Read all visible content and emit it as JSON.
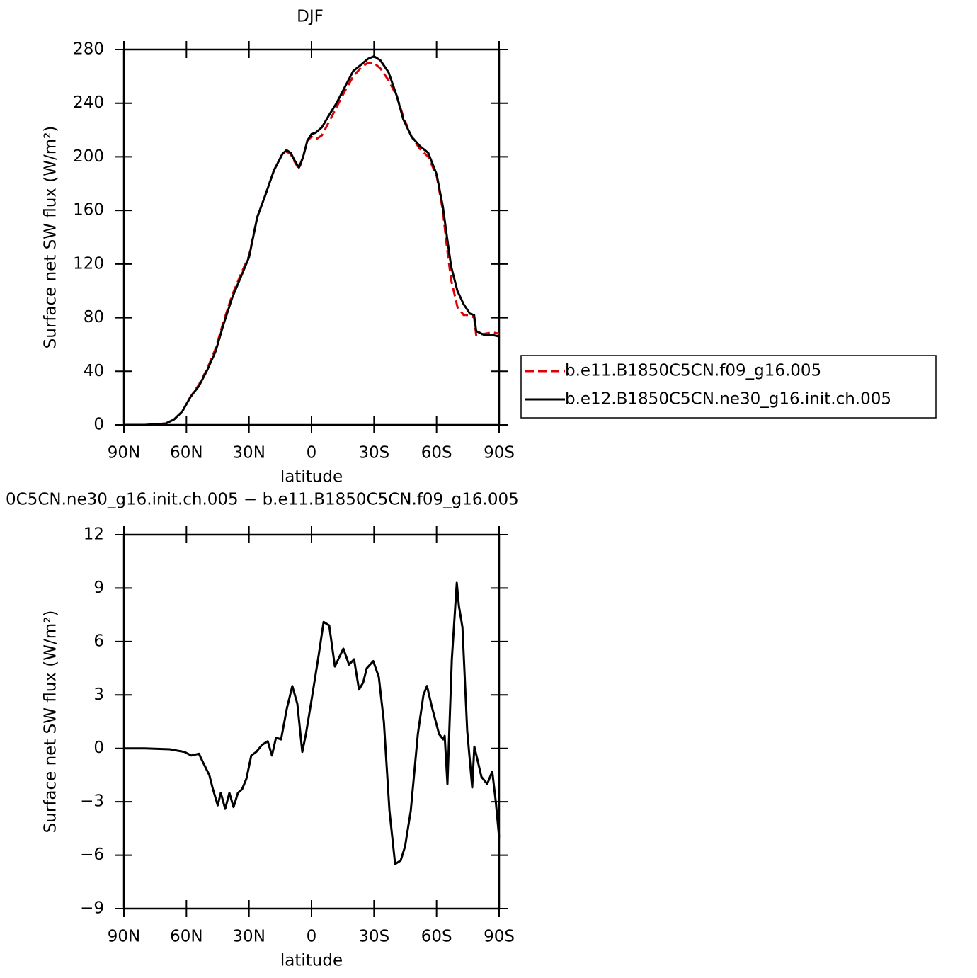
{
  "chart_data": [
    {
      "type": "line",
      "title": "DJF",
      "xlabel": "latitude",
      "ylabel": "Surface net SW flux (W/m²)",
      "x": [
        90,
        80,
        70,
        66,
        62,
        58,
        54,
        50,
        46,
        42,
        38,
        34,
        30,
        26,
        22,
        18,
        14,
        12,
        10,
        8,
        6,
        4,
        2,
        0,
        -2,
        -5,
        -8,
        -12,
        -16,
        -20,
        -24,
        -27,
        -30,
        -33,
        -37,
        -41,
        -44,
        -48,
        -52,
        -56,
        -60,
        -63,
        -65,
        -67,
        -70,
        -73,
        -76,
        -78,
        -79,
        -83,
        -87,
        -90
      ],
      "series": [
        {
          "name": "b.e11.B1850C5CN.f09_g16.005",
          "color": "#e00000",
          "dash": true,
          "values": [
            0,
            0,
            1,
            4,
            10,
            21,
            30,
            42,
            57,
            78,
            97,
            112,
            126,
            155,
            172,
            190,
            202,
            204,
            202,
            196,
            191,
            200,
            212,
            215,
            213,
            216,
            225,
            237,
            249,
            260,
            267,
            270,
            270,
            266,
            257,
            245,
            230,
            215,
            206,
            200,
            186,
            160,
            132,
            108,
            88,
            82,
            82,
            80,
            67,
            68,
            69,
            68
          ]
        },
        {
          "name": "b.e12.B1850C5CN.ne30_g16.init.ch.005",
          "color": "#000000",
          "dash": false,
          "values": [
            0,
            0,
            1,
            4,
            10,
            21,
            29,
            41,
            55,
            76,
            95,
            110,
            125,
            155,
            172,
            190,
            202,
            205,
            203,
            197,
            192,
            200,
            212,
            217,
            218,
            222,
            230,
            240,
            252,
            264,
            269,
            273,
            275,
            272,
            263,
            245,
            228,
            215,
            208,
            203,
            187,
            163,
            140,
            118,
            100,
            90,
            83,
            82,
            70,
            67,
            67,
            66
          ]
        }
      ],
      "xlim": [
        90,
        -90
      ],
      "xticks": [
        {
          "value": 90,
          "label": "90N"
        },
        {
          "value": 60,
          "label": "60N"
        },
        {
          "value": 30,
          "label": "30N"
        },
        0,
        {
          "value": -30,
          "label": "30S"
        },
        {
          "value": -60,
          "label": "60S"
        },
        {
          "value": -90,
          "label": "90S"
        }
      ],
      "ylim": [
        0,
        280
      ],
      "yticks": [
        0,
        40,
        80,
        120,
        160,
        200,
        240,
        280
      ],
      "legend": "right"
    },
    {
      "type": "line",
      "title": "0C5CN.ne30_g16.init.ch.005 − b.e11.B1850C5CN.f09_g16.005",
      "xlabel": "latitude",
      "ylabel": "Surface net SW flux (W/m²)",
      "x": [
        90,
        80,
        68,
        61,
        57.7,
        54,
        52,
        49,
        47.5,
        45,
        43.5,
        41.4,
        39.4,
        37.4,
        35.3,
        33.3,
        31.2,
        28.9,
        26.5,
        23.7,
        21,
        19,
        17,
        14.6,
        11.9,
        9.2,
        6.8,
        4.4,
        2.7,
        0,
        -3.4,
        -5.8,
        -8.5,
        -11.2,
        -15.3,
        -18,
        -20.4,
        -22.8,
        -24.8,
        -26.5,
        -29.6,
        -32.3,
        -34.7,
        -37.4,
        -40.1,
        -42.8,
        -44.9,
        -47.6,
        -51,
        -53.7,
        -55.4,
        -57.8,
        -61.2,
        -63.2,
        -63.9,
        -65.2,
        -67.3,
        -69.7,
        -70.7,
        -72.4,
        -74.7,
        -77.1,
        -78.1,
        -81.5,
        -84.3,
        -86.7,
        -88.4,
        -90
      ],
      "series": [
        {
          "name": null,
          "color": "#000000",
          "dash": false,
          "values": [
            0,
            0,
            -0.05,
            -0.2,
            -0.4,
            -0.3,
            -0.8,
            -1.5,
            -2.2,
            -3.2,
            -2.5,
            -3.4,
            -2.5,
            -3.3,
            -2.5,
            -2.3,
            -1.7,
            -0.4,
            -0.2,
            0.2,
            0.4,
            -0.4,
            0.6,
            0.5,
            2.2,
            3.5,
            2.5,
            -0.2,
            0.8,
            2.7,
            5.2,
            7.1,
            6.9,
            4.6,
            5.6,
            4.7,
            5.0,
            3.3,
            3.7,
            4.5,
            4.9,
            4.0,
            1.5,
            -3.5,
            -6.5,
            -6.3,
            -5.5,
            -3.5,
            0.8,
            3.0,
            3.5,
            2.3,
            0.8,
            0.5,
            0.7,
            -2.0,
            5.0,
            9.3,
            8.0,
            6.8,
            1.0,
            -2.2,
            0.1,
            -1.6,
            -2.0,
            -1.3,
            -3.0,
            -5.0
          ]
        }
      ],
      "xlim": [
        90,
        -90
      ],
      "xticks": [
        {
          "value": 90,
          "label": "90N"
        },
        {
          "value": 60,
          "label": "60N"
        },
        {
          "value": 30,
          "label": "30N"
        },
        0,
        {
          "value": -30,
          "label": "30S"
        },
        {
          "value": -60,
          "label": "60S"
        },
        {
          "value": -90,
          "label": "90S"
        }
      ],
      "ylim": [
        -9,
        12
      ],
      "yticks": [
        {
          "value": -9,
          "label": "−9"
        },
        {
          "value": -6,
          "label": "−6"
        },
        {
          "value": -3,
          "label": "−3"
        },
        0,
        3,
        6,
        9,
        12
      ]
    }
  ]
}
